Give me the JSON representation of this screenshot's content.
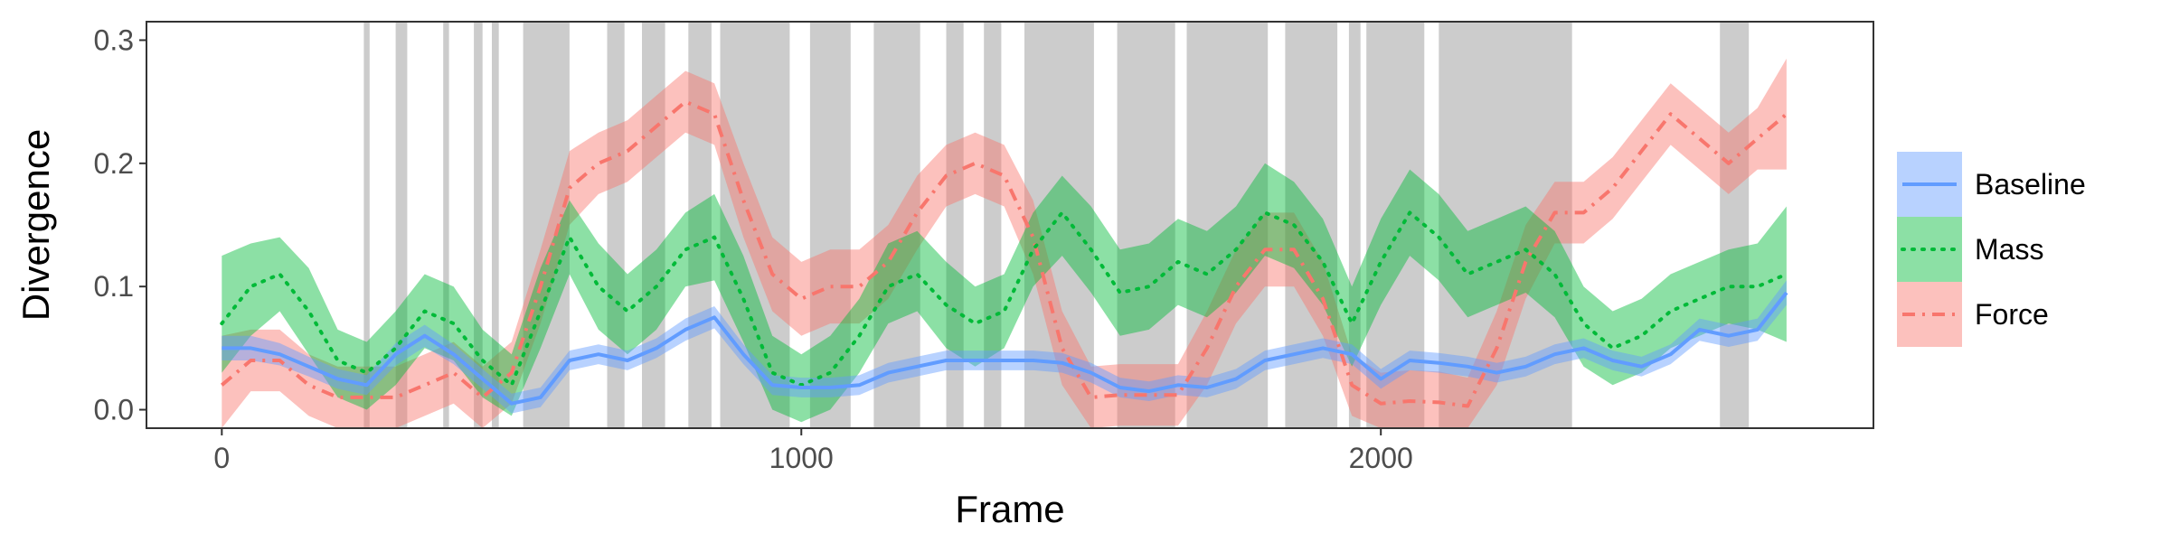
{
  "chart_data": {
    "type": "line",
    "title": "",
    "xlabel": "Frame",
    "ylabel": "Divergence",
    "xlim": [
      -130,
      2850
    ],
    "ylim": [
      -0.015,
      0.315
    ],
    "xticks": [
      0,
      1000,
      2000
    ],
    "yticks": [
      0.0,
      0.1,
      0.2,
      0.3
    ],
    "ytick_labels": [
      "0.0",
      "0.1",
      "0.2",
      "0.3"
    ],
    "grid": false,
    "legend": "right",
    "shaded_intervals": [
      [
        245,
        255
      ],
      [
        300,
        320
      ],
      [
        382,
        392
      ],
      [
        435,
        450
      ],
      [
        466,
        478
      ],
      [
        520,
        600
      ],
      [
        665,
        695
      ],
      [
        725,
        765
      ],
      [
        805,
        845
      ],
      [
        860,
        980
      ],
      [
        1015,
        1085
      ],
      [
        1125,
        1205
      ],
      [
        1250,
        1280
      ],
      [
        1315,
        1345
      ],
      [
        1385,
        1505
      ],
      [
        1545,
        1645
      ],
      [
        1665,
        1805
      ],
      [
        1835,
        1925
      ],
      [
        1945,
        1965
      ],
      [
        1975,
        2075
      ],
      [
        2100,
        2330
      ],
      [
        2585,
        2635
      ]
    ],
    "x": [
      0,
      50,
      100,
      150,
      200,
      250,
      300,
      350,
      400,
      450,
      500,
      550,
      600,
      650,
      700,
      750,
      800,
      850,
      900,
      950,
      1000,
      1050,
      1100,
      1150,
      1200,
      1250,
      1300,
      1350,
      1400,
      1450,
      1500,
      1550,
      1600,
      1650,
      1700,
      1750,
      1800,
      1850,
      1900,
      1950,
      2000,
      2050,
      2100,
      2150,
      2200,
      2250,
      2300,
      2350,
      2400,
      2450,
      2500,
      2550,
      2600,
      2650,
      2700
    ],
    "series": [
      {
        "name": "Baseline",
        "color": "#619CFF",
        "dash": "solid",
        "y": [
          0.05,
          0.05,
          0.045,
          0.035,
          0.025,
          0.02,
          0.045,
          0.06,
          0.045,
          0.025,
          0.005,
          0.01,
          0.04,
          0.045,
          0.04,
          0.05,
          0.065,
          0.075,
          0.045,
          0.02,
          0.018,
          0.018,
          0.02,
          0.03,
          0.035,
          0.04,
          0.04,
          0.04,
          0.04,
          0.038,
          0.03,
          0.018,
          0.015,
          0.02,
          0.018,
          0.025,
          0.04,
          0.045,
          0.05,
          0.045,
          0.025,
          0.04,
          0.038,
          0.035,
          0.03,
          0.035,
          0.045,
          0.05,
          0.04,
          0.035,
          0.045,
          0.065,
          0.06,
          0.065,
          0.095
        ],
        "lower": [
          0.04,
          0.04,
          0.036,
          0.027,
          0.017,
          0.012,
          0.036,
          0.051,
          0.037,
          0.017,
          -0.003,
          0.002,
          0.032,
          0.037,
          0.032,
          0.042,
          0.056,
          0.066,
          0.037,
          0.012,
          0.01,
          0.01,
          0.012,
          0.022,
          0.027,
          0.032,
          0.032,
          0.032,
          0.032,
          0.03,
          0.022,
          0.01,
          0.007,
          0.012,
          0.01,
          0.017,
          0.032,
          0.037,
          0.042,
          0.037,
          0.017,
          0.032,
          0.03,
          0.027,
          0.022,
          0.027,
          0.037,
          0.042,
          0.032,
          0.027,
          0.037,
          0.056,
          0.051,
          0.056,
          0.085
        ],
        "upper": [
          0.06,
          0.06,
          0.054,
          0.043,
          0.033,
          0.028,
          0.054,
          0.069,
          0.053,
          0.033,
          0.013,
          0.018,
          0.048,
          0.053,
          0.048,
          0.058,
          0.074,
          0.084,
          0.053,
          0.028,
          0.026,
          0.026,
          0.028,
          0.038,
          0.043,
          0.048,
          0.048,
          0.048,
          0.048,
          0.046,
          0.038,
          0.026,
          0.023,
          0.028,
          0.026,
          0.033,
          0.048,
          0.053,
          0.058,
          0.053,
          0.033,
          0.048,
          0.046,
          0.043,
          0.038,
          0.043,
          0.053,
          0.058,
          0.048,
          0.043,
          0.053,
          0.074,
          0.069,
          0.074,
          0.105
        ]
      },
      {
        "name": "Mass",
        "color": "#00BA38",
        "dash": "dotted",
        "y": [
          0.07,
          0.1,
          0.11,
          0.08,
          0.04,
          0.03,
          0.05,
          0.08,
          0.07,
          0.04,
          0.02,
          0.08,
          0.14,
          0.1,
          0.08,
          0.1,
          0.13,
          0.14,
          0.09,
          0.03,
          0.02,
          0.03,
          0.06,
          0.1,
          0.11,
          0.085,
          0.07,
          0.08,
          0.13,
          0.16,
          0.13,
          0.095,
          0.1,
          0.12,
          0.11,
          0.13,
          0.16,
          0.15,
          0.12,
          0.07,
          0.12,
          0.16,
          0.14,
          0.11,
          0.12,
          0.13,
          0.11,
          0.07,
          0.05,
          0.06,
          0.08,
          0.09,
          0.1,
          0.1,
          0.11
        ],
        "lower": [
          0.03,
          0.06,
          0.08,
          0.045,
          0.01,
          0.0,
          0.02,
          0.05,
          0.04,
          0.01,
          -0.005,
          0.05,
          0.11,
          0.065,
          0.045,
          0.065,
          0.1,
          0.105,
          0.055,
          0.0,
          -0.01,
          0.0,
          0.03,
          0.07,
          0.08,
          0.05,
          0.035,
          0.05,
          0.1,
          0.125,
          0.095,
          0.06,
          0.065,
          0.085,
          0.075,
          0.095,
          0.125,
          0.115,
          0.085,
          0.035,
          0.085,
          0.125,
          0.105,
          0.075,
          0.085,
          0.095,
          0.075,
          0.035,
          0.02,
          0.03,
          0.05,
          0.06,
          0.07,
          0.065,
          0.055
        ],
        "upper": [
          0.125,
          0.135,
          0.14,
          0.115,
          0.065,
          0.055,
          0.08,
          0.11,
          0.1,
          0.065,
          0.045,
          0.115,
          0.17,
          0.135,
          0.11,
          0.13,
          0.16,
          0.175,
          0.125,
          0.06,
          0.045,
          0.06,
          0.09,
          0.135,
          0.145,
          0.12,
          0.1,
          0.11,
          0.16,
          0.19,
          0.165,
          0.13,
          0.135,
          0.155,
          0.145,
          0.165,
          0.2,
          0.185,
          0.155,
          0.1,
          0.155,
          0.195,
          0.175,
          0.145,
          0.155,
          0.165,
          0.145,
          0.1,
          0.08,
          0.09,
          0.11,
          0.12,
          0.13,
          0.135,
          0.165
        ]
      },
      {
        "name": "Force",
        "color": "#F8766D",
        "dash": "dashdot",
        "y": [
          0.02,
          0.04,
          0.04,
          0.02,
          0.01,
          0.01,
          0.01,
          0.02,
          0.03,
          0.01,
          0.03,
          0.1,
          0.18,
          0.2,
          0.21,
          0.23,
          0.25,
          0.24,
          0.17,
          0.11,
          0.09,
          0.1,
          0.1,
          0.12,
          0.16,
          0.19,
          0.2,
          0.19,
          0.14,
          0.05,
          0.01,
          0.012,
          0.012,
          0.012,
          0.05,
          0.1,
          0.13,
          0.13,
          0.09,
          0.02,
          0.005,
          0.007,
          0.006,
          0.003,
          0.05,
          0.12,
          0.16,
          0.16,
          0.18,
          0.21,
          0.24,
          0.22,
          0.2,
          0.22,
          0.24
        ],
        "lower": [
          -0.015,
          0.015,
          0.015,
          -0.005,
          -0.015,
          -0.015,
          -0.015,
          -0.005,
          0.005,
          -0.015,
          0.005,
          0.07,
          0.15,
          0.175,
          0.185,
          0.205,
          0.225,
          0.215,
          0.14,
          0.08,
          0.06,
          0.07,
          0.07,
          0.09,
          0.13,
          0.165,
          0.175,
          0.165,
          0.11,
          0.02,
          -0.015,
          -0.013,
          -0.013,
          -0.013,
          0.02,
          0.07,
          0.1,
          0.1,
          0.06,
          -0.005,
          -0.02,
          -0.018,
          -0.019,
          -0.02,
          0.02,
          0.09,
          0.135,
          0.135,
          0.155,
          0.185,
          0.215,
          0.195,
          0.175,
          0.195,
          0.195
        ],
        "upper": [
          0.06,
          0.065,
          0.065,
          0.045,
          0.035,
          0.035,
          0.035,
          0.045,
          0.055,
          0.035,
          0.055,
          0.13,
          0.21,
          0.225,
          0.235,
          0.255,
          0.275,
          0.265,
          0.2,
          0.14,
          0.12,
          0.13,
          0.13,
          0.15,
          0.19,
          0.215,
          0.225,
          0.215,
          0.17,
          0.08,
          0.035,
          0.037,
          0.037,
          0.037,
          0.08,
          0.13,
          0.16,
          0.16,
          0.12,
          0.045,
          0.03,
          0.032,
          0.031,
          0.026,
          0.08,
          0.15,
          0.185,
          0.185,
          0.205,
          0.235,
          0.265,
          0.245,
          0.225,
          0.245,
          0.285
        ]
      }
    ]
  }
}
